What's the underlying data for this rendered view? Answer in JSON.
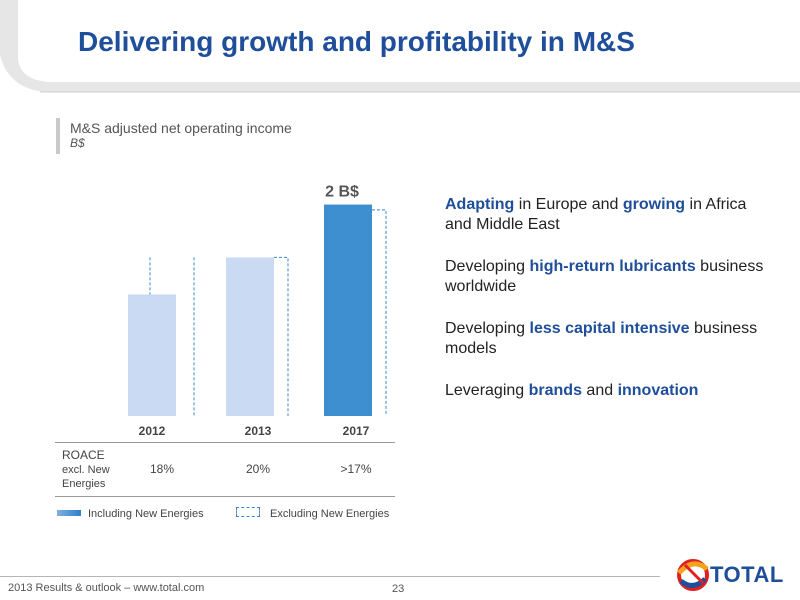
{
  "header": {
    "title": "Delivering growth and profitability in M&S"
  },
  "chart_data": {
    "type": "bar",
    "title": "M&S adjusted net operating income",
    "unit": "B$",
    "categories": [
      "2012",
      "2013",
      "2017"
    ],
    "series": [
      {
        "name": "Including New Energies",
        "values": [
          1.15,
          1.5,
          2.0
        ]
      },
      {
        "name": "Excluding New Energies",
        "values": [
          1.5,
          1.5,
          1.95
        ]
      }
    ],
    "data_labels": [
      "",
      "",
      "2 B$"
    ],
    "colors": [
      "#c9daf2",
      "#c9daf2",
      "#3d8fd0"
    ],
    "ylim": [
      0,
      2.1
    ],
    "grid": false,
    "legend_position": "bottom"
  },
  "roace": {
    "title": "ROACE",
    "subtitle": "excl. New Energies",
    "values": [
      "18%",
      "20%",
      ">17%"
    ]
  },
  "legend": {
    "including": "Including New Energies",
    "excluding": "Excluding New Energies"
  },
  "bullets": [
    {
      "parts": [
        {
          "t": "Adapting",
          "h": true
        },
        {
          "t": " in Europe and ",
          "h": false
        },
        {
          "t": "growing",
          "h": true
        },
        {
          "t": " in Africa and Middle East",
          "h": false
        }
      ]
    },
    {
      "parts": [
        {
          "t": "Developing ",
          "h": false
        },
        {
          "t": "high-return lubricants",
          "h": true
        },
        {
          "t": " business worldwide",
          "h": false
        }
      ]
    },
    {
      "parts": [
        {
          "t": "Developing ",
          "h": false
        },
        {
          "t": "less capital intensive",
          "h": true
        },
        {
          "t": " business models",
          "h": false
        }
      ]
    },
    {
      "parts": [
        {
          "t": "Leveraging ",
          "h": false
        },
        {
          "t": "brands",
          "h": true
        },
        {
          "t": " and ",
          "h": false
        },
        {
          "t": "innovation",
          "h": true
        }
      ]
    }
  ],
  "footer": {
    "text": "2013 Results & outlook – www.total.com",
    "page": "23",
    "logo": "TOTAL"
  },
  "theme": {
    "accent": "#1f4e9a",
    "bar_light": "#c9daf2",
    "bar_dark": "#3d8fd0"
  }
}
